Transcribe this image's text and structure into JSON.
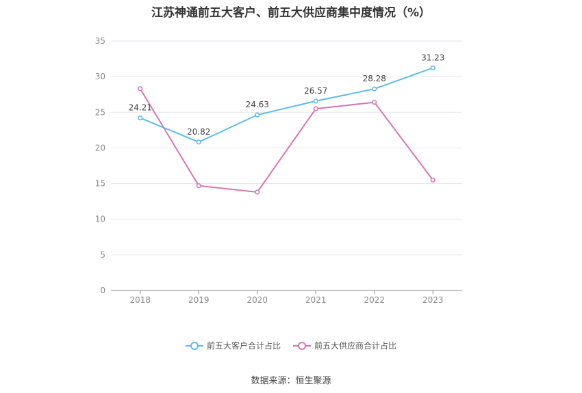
{
  "title": "江苏神通前五大客户、前五大供应商集中度情况（%）",
  "source": "数据来源：恒生聚源",
  "chart_data": {
    "type": "line",
    "x": [
      "2018",
      "2019",
      "2020",
      "2021",
      "2022",
      "2023"
    ],
    "ylim": [
      0,
      35
    ],
    "yticks": [
      0,
      5,
      10,
      15,
      20,
      25,
      30,
      35
    ],
    "grid": true,
    "legend_position": "bottom",
    "series": [
      {
        "name": "前五大客户合计占比",
        "color": "#5bbcec",
        "values": [
          24.21,
          20.82,
          24.63,
          26.57,
          28.28,
          31.23
        ],
        "labels": [
          "24.21",
          "20.82",
          "24.63",
          "26.57",
          "28.28",
          "31.23"
        ]
      },
      {
        "name": "前五大供应商合计占比",
        "color": "#d873b6",
        "values": [
          28.3,
          14.7,
          13.8,
          25.5,
          26.4,
          15.5
        ],
        "labels": []
      }
    ]
  }
}
